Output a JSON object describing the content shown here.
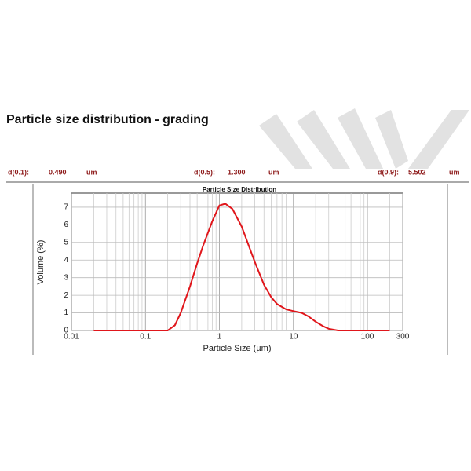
{
  "header": {
    "title": "Particle size distribution - grading"
  },
  "stats": [
    {
      "label": "d(0.1):",
      "value": "0.490",
      "unit": "um"
    },
    {
      "label": "d(0.5):",
      "value": "1.300",
      "unit": "um"
    },
    {
      "label": "d(0.9):",
      "value": "5.502",
      "unit": "um"
    }
  ],
  "chart_data": {
    "type": "line",
    "title": "Particle Size Distribution",
    "x_label": "Particle Size (µm)",
    "y_label": "Volume (%)",
    "x": [
      0.02,
      0.05,
      0.1,
      0.2,
      0.25,
      0.3,
      0.4,
      0.5,
      0.6,
      0.8,
      1,
      1.2,
      1.5,
      2,
      3,
      4,
      5,
      6,
      8,
      10,
      13,
      16,
      20,
      25,
      30,
      40,
      60,
      100,
      200
    ],
    "series": [
      {
        "name": "Volume",
        "color": "#e0161b",
        "values": [
          0,
          0,
          0,
          0,
          0.3,
          1,
          2.5,
          3.8,
          4.8,
          6.2,
          7.1,
          7.2,
          6.9,
          5.9,
          3.9,
          2.6,
          1.9,
          1.5,
          1.2,
          1.1,
          1.0,
          0.8,
          0.5,
          0.25,
          0.1,
          0,
          0,
          0,
          0
        ]
      }
    ],
    "xlim": [
      0.01,
      300
    ],
    "xticks": [
      0.01,
      0.1,
      1,
      10,
      100,
      300
    ],
    "xscale": "log",
    "ylim": [
      0,
      7.8
    ],
    "yticks": [
      0,
      1,
      2,
      3,
      4,
      5,
      6,
      7
    ],
    "grid": true
  }
}
